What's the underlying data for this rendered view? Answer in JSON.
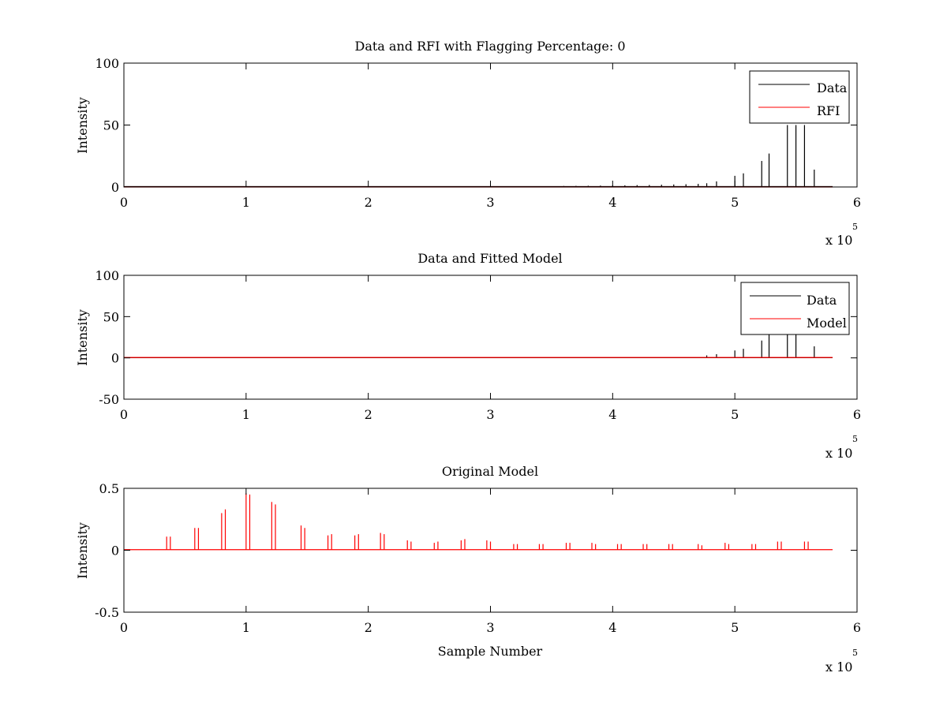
{
  "figure": {
    "background": "#ffffff"
  },
  "colors": {
    "data": "#000000",
    "rfi": "#ff0000",
    "model": "#ff0000",
    "axes": "#000000"
  },
  "chart_data": [
    {
      "type": "line",
      "title": "Data and RFI with Flagging Percentage: 0",
      "xlabel": "",
      "ylabel": "Intensity",
      "xlim": [
        0,
        6
      ],
      "ylim": [
        0,
        100
      ],
      "x_exponent": {
        "base": "x 10",
        "power": "5"
      },
      "xticks": [
        0,
        1,
        2,
        3,
        4,
        5,
        6
      ],
      "yticks": [
        0,
        50,
        100
      ],
      "grid": false,
      "legend": {
        "placement": "top-right",
        "entries": [
          "Data",
          "RFI"
        ]
      },
      "series": [
        {
          "name": "Data",
          "color": "#000000",
          "baseline": 0.3,
          "x_end": 5.8,
          "spikes": [
            [
              3.6,
              0.8
            ],
            [
              3.7,
              0.9
            ],
            [
              3.8,
              1.0
            ],
            [
              3.9,
              1.1
            ],
            [
              4.0,
              1.2
            ],
            [
              4.1,
              1.3
            ],
            [
              4.2,
              1.5
            ],
            [
              4.3,
              1.6
            ],
            [
              4.4,
              1.8
            ],
            [
              4.5,
              2.0
            ],
            [
              4.6,
              2.2
            ],
            [
              4.7,
              2.5
            ],
            [
              4.77,
              3
            ],
            [
              4.85,
              4.5
            ],
            [
              5.0,
              9
            ],
            [
              5.07,
              11
            ],
            [
              5.22,
              21
            ],
            [
              5.28,
              27
            ],
            [
              5.43,
              50
            ],
            [
              5.5,
              50
            ],
            [
              5.57,
              50
            ],
            [
              5.65,
              14
            ]
          ]
        },
        {
          "name": "RFI",
          "color": "#ff0000",
          "baseline": 0,
          "x_end": 5.8,
          "spikes": []
        }
      ]
    },
    {
      "type": "line",
      "title": "Data and Fitted Model",
      "xlabel": "",
      "ylabel": "Intensity",
      "xlim": [
        0,
        6
      ],
      "ylim": [
        -50,
        100
      ],
      "x_exponent": {
        "base": "x 10",
        "power": "5"
      },
      "xticks": [
        0,
        1,
        2,
        3,
        4,
        5,
        6
      ],
      "yticks": [
        -50,
        0,
        50,
        100
      ],
      "grid": false,
      "legend": {
        "placement": "top-right",
        "entries": [
          "Data",
          "Model"
        ]
      },
      "series": [
        {
          "name": "Data",
          "color": "#000000",
          "baseline": 0.3,
          "x_end": 5.8,
          "spikes": [
            [
              4.77,
              3
            ],
            [
              4.85,
              4.5
            ],
            [
              5.0,
              9
            ],
            [
              5.07,
              11
            ],
            [
              5.22,
              21
            ],
            [
              5.28,
              28
            ],
            [
              5.43,
              28
            ],
            [
              5.5,
              28
            ],
            [
              5.65,
              14
            ]
          ]
        },
        {
          "name": "Model",
          "color": "#ff0000",
          "baseline": 0.5,
          "x_end": 5.8,
          "spikes": []
        }
      ]
    },
    {
      "type": "line",
      "title": "Original Model",
      "xlabel": "Sample Number",
      "ylabel": "Intensity",
      "xlim": [
        0,
        6
      ],
      "ylim": [
        -0.5,
        0.5
      ],
      "x_exponent": {
        "base": "x 10",
        "power": "5"
      },
      "xticks": [
        0,
        1,
        2,
        3,
        4,
        5,
        6
      ],
      "yticks": [
        -0.5,
        0,
        0.5
      ],
      "ytick_labels": [
        "-0.5",
        "0",
        "0.5"
      ],
      "grid": false,
      "legend": null,
      "series": [
        {
          "name": "",
          "color": "#ff0000",
          "baseline": 0.005,
          "x_end": 5.8,
          "spikes": [
            [
              0.35,
              0.11
            ],
            [
              0.38,
              0.11
            ],
            [
              0.58,
              0.18
            ],
            [
              0.61,
              0.18
            ],
            [
              0.8,
              0.3
            ],
            [
              0.83,
              0.33
            ],
            [
              1.0,
              0.46
            ],
            [
              1.03,
              0.45
            ],
            [
              1.21,
              0.39
            ],
            [
              1.24,
              0.37
            ],
            [
              1.45,
              0.2
            ],
            [
              1.48,
              0.18
            ],
            [
              1.67,
              0.12
            ],
            [
              1.7,
              0.13
            ],
            [
              1.89,
              0.12
            ],
            [
              1.92,
              0.13
            ],
            [
              2.1,
              0.14
            ],
            [
              2.13,
              0.13
            ],
            [
              2.32,
              0.08
            ],
            [
              2.35,
              0.07
            ],
            [
              2.54,
              0.06
            ],
            [
              2.57,
              0.07
            ],
            [
              2.76,
              0.08
            ],
            [
              2.79,
              0.09
            ],
            [
              2.97,
              0.08
            ],
            [
              3.0,
              0.07
            ],
            [
              3.19,
              0.05
            ],
            [
              3.22,
              0.05
            ],
            [
              3.4,
              0.05
            ],
            [
              3.43,
              0.05
            ],
            [
              3.62,
              0.06
            ],
            [
              3.65,
              0.06
            ],
            [
              3.83,
              0.06
            ],
            [
              3.86,
              0.05
            ],
            [
              4.04,
              0.05
            ],
            [
              4.07,
              0.05
            ],
            [
              4.25,
              0.05
            ],
            [
              4.28,
              0.05
            ],
            [
              4.46,
              0.05
            ],
            [
              4.49,
              0.05
            ],
            [
              4.7,
              0.05
            ],
            [
              4.73,
              0.04
            ],
            [
              4.92,
              0.06
            ],
            [
              4.95,
              0.05
            ],
            [
              5.14,
              0.05
            ],
            [
              5.17,
              0.05
            ],
            [
              5.35,
              0.07
            ],
            [
              5.38,
              0.07
            ],
            [
              5.57,
              0.07
            ],
            [
              5.6,
              0.07
            ]
          ]
        }
      ]
    }
  ]
}
